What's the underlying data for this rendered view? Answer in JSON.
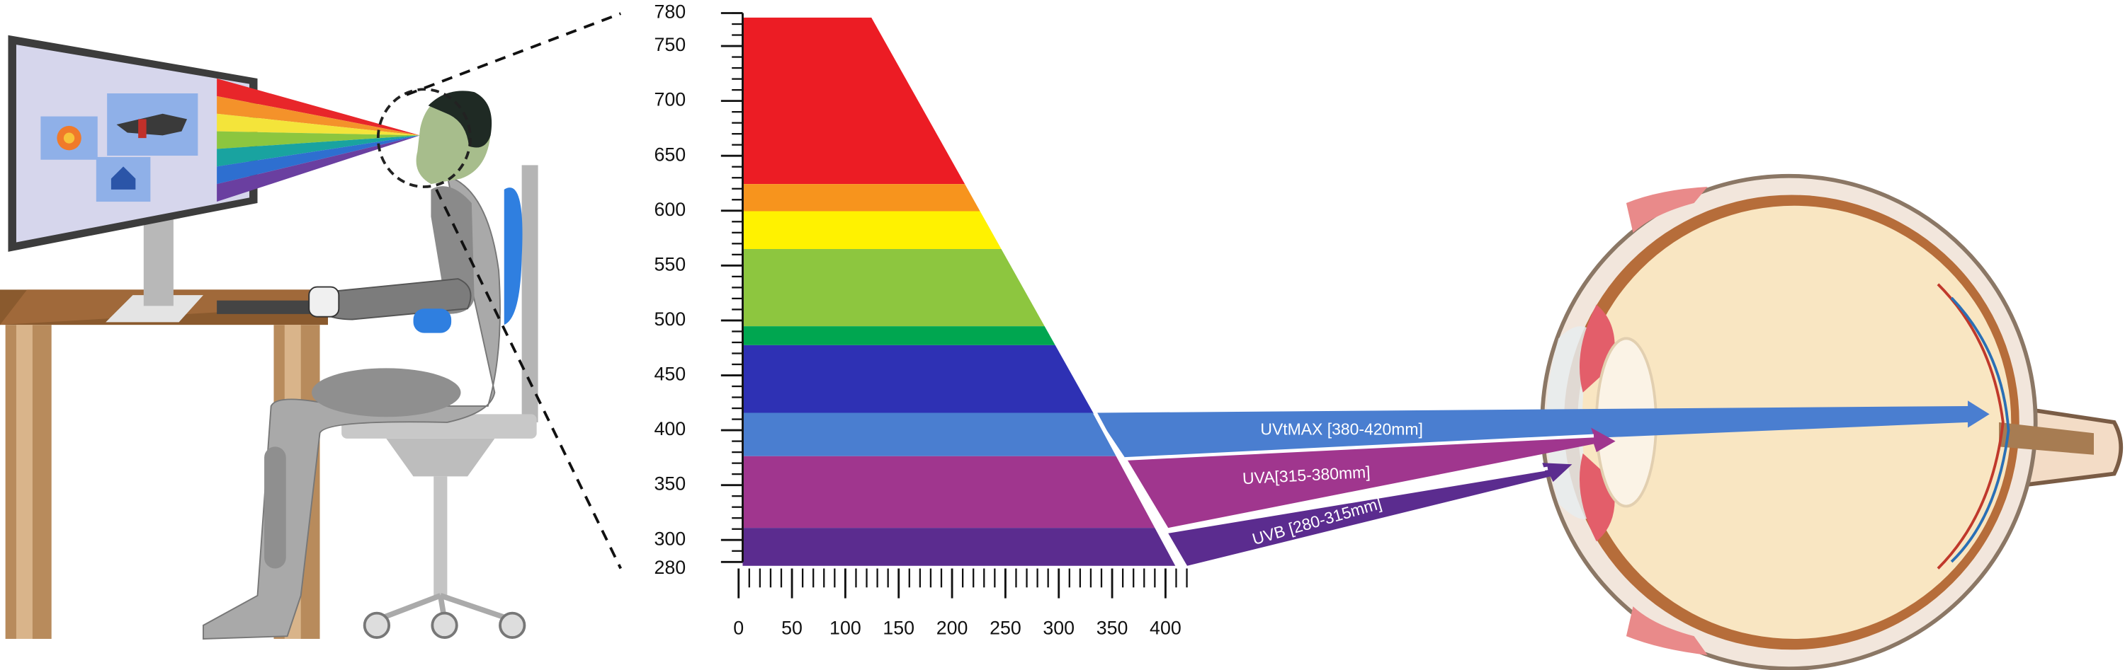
{
  "spectrum": {
    "y_axis": {
      "ticks": [
        280,
        300,
        350,
        400,
        450,
        500,
        550,
        600,
        650,
        700,
        750,
        780
      ]
    },
    "x_axis": {
      "ticks": [
        0,
        50,
        100,
        150,
        200,
        250,
        300,
        350,
        400
      ]
    }
  },
  "arrows": [
    {
      "label": "UVtMAX [380-420mm]"
    },
    {
      "label": "UVA[315-380mm]"
    },
    {
      "label": "UVB [280-315mm]"
    }
  ]
}
